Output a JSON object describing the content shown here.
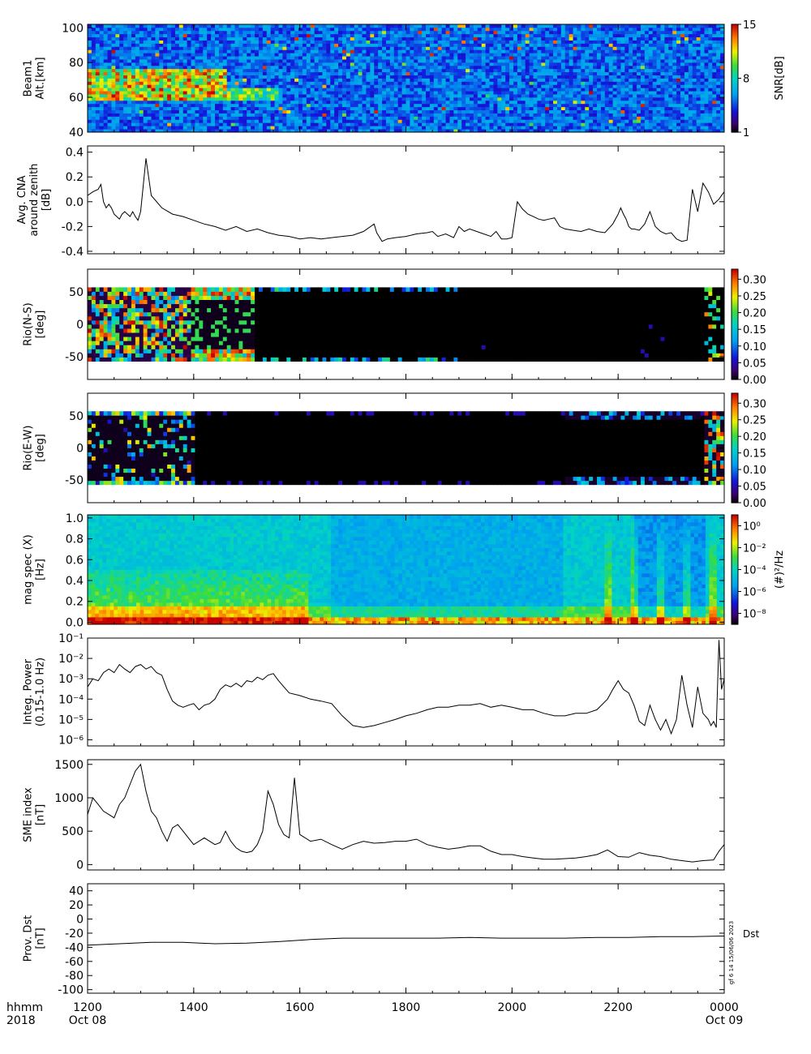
{
  "chart_data": [
    {
      "id": "beam-alt",
      "type": "heatmap",
      "ylabel": [
        "Beam1",
        "Alt.[km]"
      ],
      "yticks": [
        40,
        60,
        80,
        100
      ],
      "ylim": [
        40,
        102
      ],
      "colorbar": {
        "label": "SNR[dB]",
        "ticks": [
          "1",
          "8",
          "15"
        ],
        "scale": "linear",
        "range": [
          1,
          15
        ]
      }
    },
    {
      "id": "cna",
      "type": "line",
      "ylabel": [
        "Avg. CNA",
        "around zenith",
        "[dB]"
      ],
      "yticks": [
        "-0.4",
        "-0.2",
        "0.0",
        "0.2",
        "0.4"
      ],
      "ylim": [
        -0.42,
        0.45
      ],
      "x": [
        0,
        10,
        20,
        25,
        30,
        35,
        40,
        45,
        50,
        55,
        60,
        65,
        70,
        75,
        80,
        85,
        90,
        95,
        100,
        110,
        120,
        140,
        160,
        180,
        200,
        220,
        240,
        260,
        280,
        300,
        320,
        340,
        360,
        380,
        400,
        420,
        440,
        460,
        480,
        500,
        520,
        540,
        545,
        555,
        565,
        580,
        600,
        620,
        640,
        650,
        660,
        675,
        690,
        700,
        710,
        720,
        740,
        760,
        770,
        780,
        790,
        800,
        810,
        820,
        830,
        840,
        850,
        860,
        870,
        880,
        890,
        900,
        915,
        930,
        945,
        960,
        975,
        990,
        1000,
        1005,
        1010,
        1015,
        1020,
        1025,
        1030,
        1040,
        1050,
        1060,
        1070,
        1080,
        1090,
        1100,
        1110,
        1120,
        1130,
        1140,
        1150,
        1160,
        1170,
        1180,
        1185,
        1190,
        1195,
        1200
      ],
      "y": [
        0.05,
        0.08,
        0.1,
        0.14,
        0.0,
        -0.05,
        -0.02,
        -0.05,
        -0.1,
        -0.12,
        -0.14,
        -0.1,
        -0.08,
        -0.1,
        -0.12,
        -0.08,
        -0.12,
        -0.15,
        -0.08,
        0.35,
        0.05,
        -0.05,
        -0.1,
        -0.12,
        -0.15,
        -0.18,
        -0.2,
        -0.23,
        -0.2,
        -0.24,
        -0.22,
        -0.25,
        -0.27,
        -0.28,
        -0.3,
        -0.29,
        -0.3,
        -0.29,
        -0.28,
        -0.27,
        -0.24,
        -0.18,
        -0.25,
        -0.32,
        -0.3,
        -0.29,
        -0.28,
        -0.26,
        -0.25,
        -0.24,
        -0.28,
        -0.26,
        -0.29,
        -0.2,
        -0.24,
        -0.22,
        -0.25,
        -0.28,
        -0.24,
        -0.3,
        -0.3,
        -0.29,
        0.0,
        -0.06,
        -0.1,
        -0.12,
        -0.14,
        -0.15,
        -0.14,
        -0.13,
        -0.2,
        -0.22,
        -0.23,
        -0.24,
        -0.22,
        -0.24,
        -0.25,
        -0.18,
        -0.1,
        -0.05,
        -0.1,
        -0.14,
        -0.2,
        -0.22,
        -0.22,
        -0.23,
        -0.18,
        -0.08,
        -0.2,
        -0.24,
        -0.26,
        -0.25,
        -0.3,
        -0.32,
        -0.31,
        0.1,
        -0.08,
        0.15,
        0.08,
        -0.02,
        0.0,
        0.02,
        0.05,
        0.08
      ]
    },
    {
      "id": "rio-ns",
      "type": "heatmap",
      "ylabel": [
        "Rio(N-S)",
        "[deg]"
      ],
      "yticks": [
        "-50",
        "0",
        "50"
      ],
      "ylim": [
        -85,
        85
      ],
      "data_range": [
        -57,
        57
      ],
      "colorbar": {
        "ticks": [
          "0.00",
          "0.05",
          "0.10",
          "0.15",
          "0.20",
          "0.25",
          "0.30"
        ],
        "scale": "linear",
        "range": [
          0,
          0.33
        ]
      }
    },
    {
      "id": "rio-ew",
      "type": "heatmap",
      "ylabel": [
        "Rio(E-W)",
        "[deg]"
      ],
      "yticks": [
        "-50",
        "0",
        "50"
      ],
      "ylim": [
        -85,
        85
      ],
      "data_range": [
        -57,
        57
      ],
      "colorbar": {
        "ticks": [
          "0.00",
          "0.05",
          "0.10",
          "0.15",
          "0.20",
          "0.25",
          "0.30"
        ],
        "scale": "linear",
        "range": [
          0,
          0.33
        ]
      }
    },
    {
      "id": "mag-spec",
      "type": "heatmap",
      "ylabel": [
        "mag spec (X)",
        "[Hz]"
      ],
      "yticks": [
        "0.0",
        "0.2",
        "0.4",
        "0.6",
        "0.8",
        "1.0"
      ],
      "ylim": [
        -0.02,
        1.03
      ],
      "colorbar": {
        "label": "(#)²/Hz",
        "ticks": [
          "10⁰",
          "10⁻²",
          "10⁻⁴",
          "10⁻⁶",
          "10⁻⁸"
        ],
        "scale": "log",
        "range": [
          -9,
          1
        ]
      }
    },
    {
      "id": "integ-power",
      "type": "line",
      "ylabel": [
        "Integ. Power",
        "(0.15-1.0 Hz)"
      ],
      "yticks": [
        "10⁻¹",
        "10⁻²",
        "10⁻³",
        "10⁻⁴",
        "10⁻⁵",
        "10⁻⁶"
      ],
      "yscale": "log",
      "ylim": [
        5e-07,
        0.1
      ],
      "x": [
        0,
        10,
        20,
        30,
        40,
        50,
        60,
        70,
        80,
        90,
        100,
        110,
        120,
        130,
        140,
        150,
        160,
        170,
        180,
        190,
        200,
        210,
        220,
        230,
        240,
        250,
        260,
        270,
        280,
        290,
        300,
        310,
        320,
        330,
        340,
        350,
        360,
        370,
        380,
        400,
        420,
        440,
        460,
        480,
        500,
        520,
        540,
        560,
        580,
        600,
        620,
        640,
        660,
        680,
        700,
        720,
        740,
        760,
        780,
        800,
        820,
        840,
        860,
        880,
        900,
        920,
        940,
        960,
        980,
        990,
        1000,
        1010,
        1020,
        1030,
        1040,
        1050,
        1060,
        1070,
        1080,
        1090,
        1100,
        1110,
        1120,
        1130,
        1140,
        1150,
        1160,
        1170,
        1175,
        1180,
        1185,
        1190,
        1195,
        1200
      ],
      "y": [
        0.0004,
        0.001,
        0.0008,
        0.002,
        0.003,
        0.002,
        0.005,
        0.003,
        0.002,
        0.004,
        0.005,
        0.003,
        0.004,
        0.002,
        0.0015,
        0.0003,
        8e-05,
        5e-05,
        4e-05,
        5e-05,
        6e-05,
        3e-05,
        5e-05,
        6e-05,
        0.0001,
        0.0003,
        0.0005,
        0.0004,
        0.0006,
        0.0004,
        0.0008,
        0.0007,
        0.0012,
        0.0009,
        0.0015,
        0.0018,
        0.0008,
        0.0004,
        0.0002,
        0.00015,
        0.0001,
        8e-05,
        6e-05,
        1.5e-05,
        5e-06,
        4e-06,
        5e-06,
        7e-06,
        1e-05,
        1.5e-05,
        2e-05,
        3e-05,
        4e-05,
        4e-05,
        5e-05,
        5e-05,
        6e-05,
        4e-05,
        5e-05,
        4e-05,
        3e-05,
        3e-05,
        2e-05,
        1.5e-05,
        1.5e-05,
        2e-05,
        2e-05,
        3e-05,
        0.0001,
        0.0003,
        0.0008,
        0.0003,
        0.0002,
        5e-05,
        8e-06,
        5e-06,
        5e-05,
        1e-05,
        3e-06,
        1e-05,
        2e-06,
        1e-05,
        0.0015,
        5e-05,
        4e-06,
        0.0004,
        2e-05,
        1e-05,
        5e-06,
        8e-06,
        4e-06,
        0.08,
        0.0003,
        0.001
      ]
    },
    {
      "id": "sme",
      "type": "line",
      "ylabel": [
        "SME index",
        "[nT]"
      ],
      "yticks": [
        "0",
        "500",
        "1000",
        "1500"
      ],
      "ylim": [
        -80,
        1570
      ],
      "x": [
        0,
        10,
        20,
        30,
        40,
        50,
        60,
        70,
        80,
        90,
        100,
        110,
        120,
        130,
        140,
        150,
        160,
        170,
        180,
        190,
        200,
        210,
        220,
        230,
        240,
        250,
        260,
        270,
        280,
        290,
        300,
        310,
        320,
        330,
        340,
        350,
        360,
        370,
        380,
        390,
        400,
        420,
        440,
        460,
        480,
        500,
        520,
        540,
        560,
        580,
        600,
        620,
        640,
        660,
        680,
        700,
        720,
        740,
        760,
        780,
        800,
        820,
        840,
        860,
        880,
        900,
        920,
        940,
        960,
        980,
        1000,
        1020,
        1040,
        1060,
        1080,
        1100,
        1120,
        1140,
        1160,
        1180,
        1190,
        1200
      ],
      "y": [
        750,
        1000,
        900,
        800,
        750,
        700,
        900,
        1000,
        1200,
        1400,
        1500,
        1100,
        800,
        700,
        500,
        350,
        550,
        600,
        500,
        400,
        300,
        350,
        400,
        350,
        300,
        330,
        500,
        350,
        250,
        200,
        180,
        200,
        300,
        500,
        1100,
        900,
        600,
        450,
        400,
        1300,
        450,
        350,
        380,
        300,
        230,
        300,
        350,
        320,
        330,
        350,
        350,
        380,
        300,
        260,
        230,
        250,
        280,
        280,
        200,
        150,
        150,
        120,
        100,
        80,
        80,
        90,
        100,
        120,
        150,
        220,
        120,
        110,
        180,
        140,
        120,
        80,
        60,
        40,
        60,
        70,
        200,
        300
      ]
    },
    {
      "id": "dst",
      "type": "line",
      "ylabel": [
        "Prov. Dst",
        "[nT]"
      ],
      "yticks": [
        "-100",
        "-80",
        "-60",
        "-40",
        "-20",
        "0",
        "20",
        "40"
      ],
      "ylim": [
        -105,
        50
      ],
      "series": [
        {
          "name": "Dst",
          "x": [
            0,
            60,
            120,
            180,
            240,
            300,
            360,
            420,
            480,
            540,
            600,
            660,
            720,
            780,
            840,
            900,
            960,
            1020,
            1080,
            1140,
            1200
          ],
          "y": [
            -37,
            -35,
            -33,
            -33,
            -35,
            -34,
            -32,
            -29,
            -27,
            -27,
            -27,
            -27,
            -26,
            -27,
            -27,
            -27,
            -26,
            -26,
            -25,
            -25,
            -24
          ]
        }
      ]
    }
  ],
  "x_axis": {
    "unit_label": "hhmm",
    "year_label": "2018",
    "ticks": [
      {
        "x": 0,
        "label": "1200",
        "date": "Oct 08"
      },
      {
        "x": 200,
        "label": "1400",
        "date": ""
      },
      {
        "x": 400,
        "label": "1600",
        "date": ""
      },
      {
        "x": 600,
        "label": "1800",
        "date": ""
      },
      {
        "x": 800,
        "label": "2000",
        "date": ""
      },
      {
        "x": 1000,
        "label": "2200",
        "date": ""
      },
      {
        "x": 1200,
        "label": "0000",
        "date": "Oct 09"
      }
    ],
    "xlim": [
      0,
      1200
    ]
  },
  "stamp": "gf 6 14 15/06/06 2023"
}
